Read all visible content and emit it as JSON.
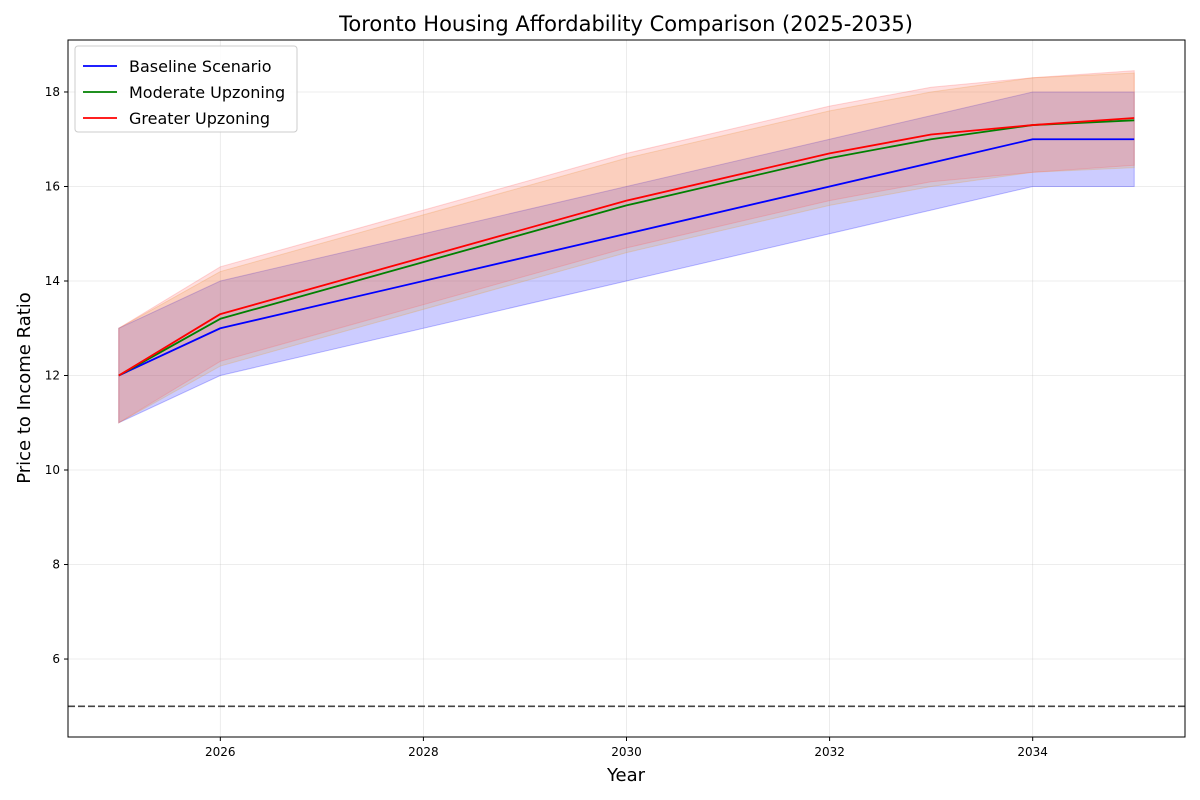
{
  "chart_data": {
    "type": "line",
    "title": "Toronto Housing Affordability Comparison (2025-2035)",
    "xlabel": "Year",
    "ylabel": "Price to Income Ratio",
    "xlim": [
      2024.5,
      2035.5
    ],
    "ylim": [
      4.35,
      19.1
    ],
    "xticks": [
      2026,
      2028,
      2030,
      2032,
      2034
    ],
    "yticks": [
      6,
      8,
      10,
      12,
      14,
      16,
      18
    ],
    "grid": true,
    "legend_position": "top-left",
    "reference_line": {
      "y": 5,
      "style": "dashed",
      "color": "#444444"
    },
    "x": [
      2025,
      2026,
      2030,
      2032,
      2033,
      2034,
      2035
    ],
    "series": [
      {
        "name": "Baseline Scenario",
        "color": "#0000ff",
        "band_color": "#0000ff",
        "values": [
          12,
          13,
          15,
          16,
          16.5,
          17,
          17
        ],
        "lower": [
          11,
          12,
          14,
          15,
          15.5,
          16,
          16
        ],
        "upper": [
          13,
          14,
          16,
          17,
          17.5,
          18,
          18
        ]
      },
      {
        "name": "Moderate Upzoning",
        "color": "#008000",
        "band_color": "#e8a030",
        "values": [
          12,
          13.2,
          15.6,
          16.6,
          17,
          17.3,
          17.4
        ],
        "lower": [
          11,
          12.2,
          14.6,
          15.6,
          16,
          16.3,
          16.4
        ],
        "upper": [
          13,
          14.2,
          16.6,
          17.6,
          18,
          18.3,
          18.4
        ]
      },
      {
        "name": "Greater Upzoning",
        "color": "#ff0000",
        "band_color": "#ff6060",
        "values": [
          12,
          13.3,
          15.7,
          16.7,
          17.1,
          17.3,
          17.45
        ],
        "lower": [
          11,
          12.3,
          14.7,
          15.7,
          16.1,
          16.3,
          16.45
        ],
        "upper": [
          13,
          14.3,
          16.7,
          17.7,
          18.1,
          18.3,
          18.45
        ]
      }
    ]
  }
}
